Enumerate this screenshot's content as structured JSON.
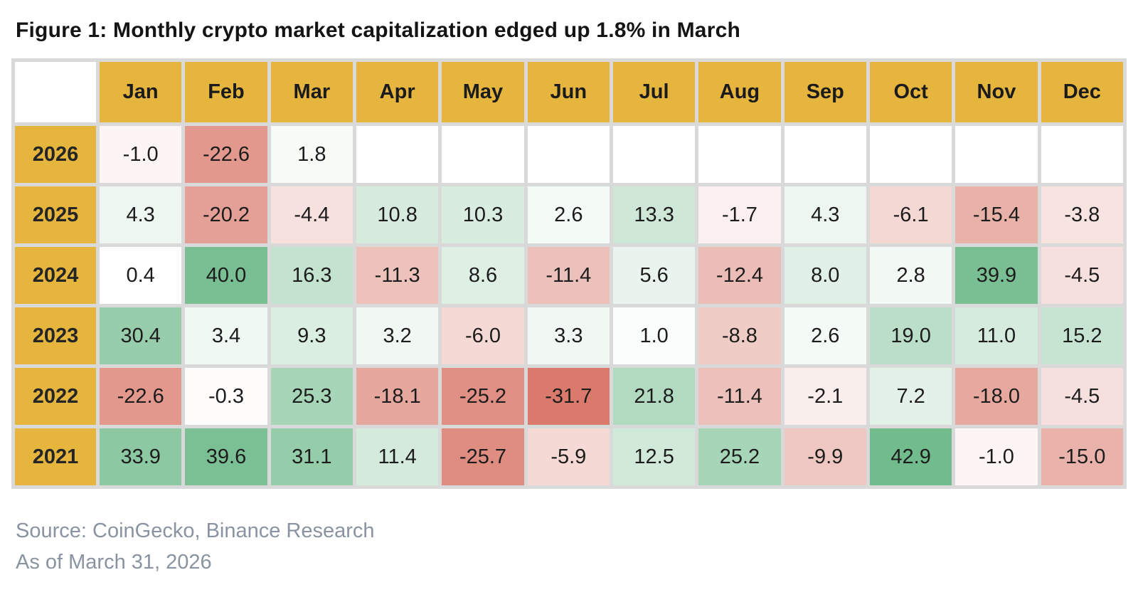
{
  "title": "Figure 1: Monthly crypto market capitalization edged up 1.8% in March",
  "footer": {
    "source": "Source: CoinGecko, Binance Research",
    "as_of": "As of March 31, 2026"
  },
  "chart_data": {
    "type": "heatmap",
    "unit": "percent monthly change",
    "columns": [
      "Jan",
      "Feb",
      "Mar",
      "Apr",
      "May",
      "Jun",
      "Jul",
      "Aug",
      "Sep",
      "Oct",
      "Nov",
      "Dec"
    ],
    "rows": [
      {
        "year": "2026",
        "values": [
          -1.0,
          -22.6,
          1.8,
          null,
          null,
          null,
          null,
          null,
          null,
          null,
          null,
          null
        ]
      },
      {
        "year": "2025",
        "values": [
          4.3,
          -20.2,
          -4.4,
          10.8,
          10.3,
          2.6,
          13.3,
          -1.7,
          4.3,
          -6.1,
          -15.4,
          -3.8
        ]
      },
      {
        "year": "2024",
        "values": [
          0.4,
          40.0,
          16.3,
          -11.3,
          8.6,
          -11.4,
          5.6,
          -12.4,
          8.0,
          2.8,
          39.9,
          -4.5
        ]
      },
      {
        "year": "2023",
        "values": [
          30.4,
          3.4,
          9.3,
          3.2,
          -6.0,
          3.3,
          1.0,
          -8.8,
          2.6,
          19.0,
          11.0,
          15.2
        ]
      },
      {
        "year": "2022",
        "values": [
          -22.6,
          -0.3,
          25.3,
          -18.1,
          -25.2,
          -31.7,
          21.8,
          -11.4,
          -2.1,
          7.2,
          -18.0,
          -4.5
        ]
      },
      {
        "year": "2021",
        "values": [
          33.9,
          39.6,
          31.1,
          11.4,
          -25.7,
          -5.9,
          12.5,
          25.2,
          -9.9,
          42.9,
          -1.0,
          -15.0
        ]
      }
    ],
    "scale": {
      "min": -31.7,
      "max": 42.9,
      "midpoint": 0
    },
    "colors": {
      "header_bg": "#E6B53E",
      "positive_max": "#71BB8C",
      "negative_max": "#D97A6C",
      "neutral": "#FFFFFF",
      "grid": "#D9D9D9"
    },
    "legend_position": "none",
    "grid": true
  }
}
